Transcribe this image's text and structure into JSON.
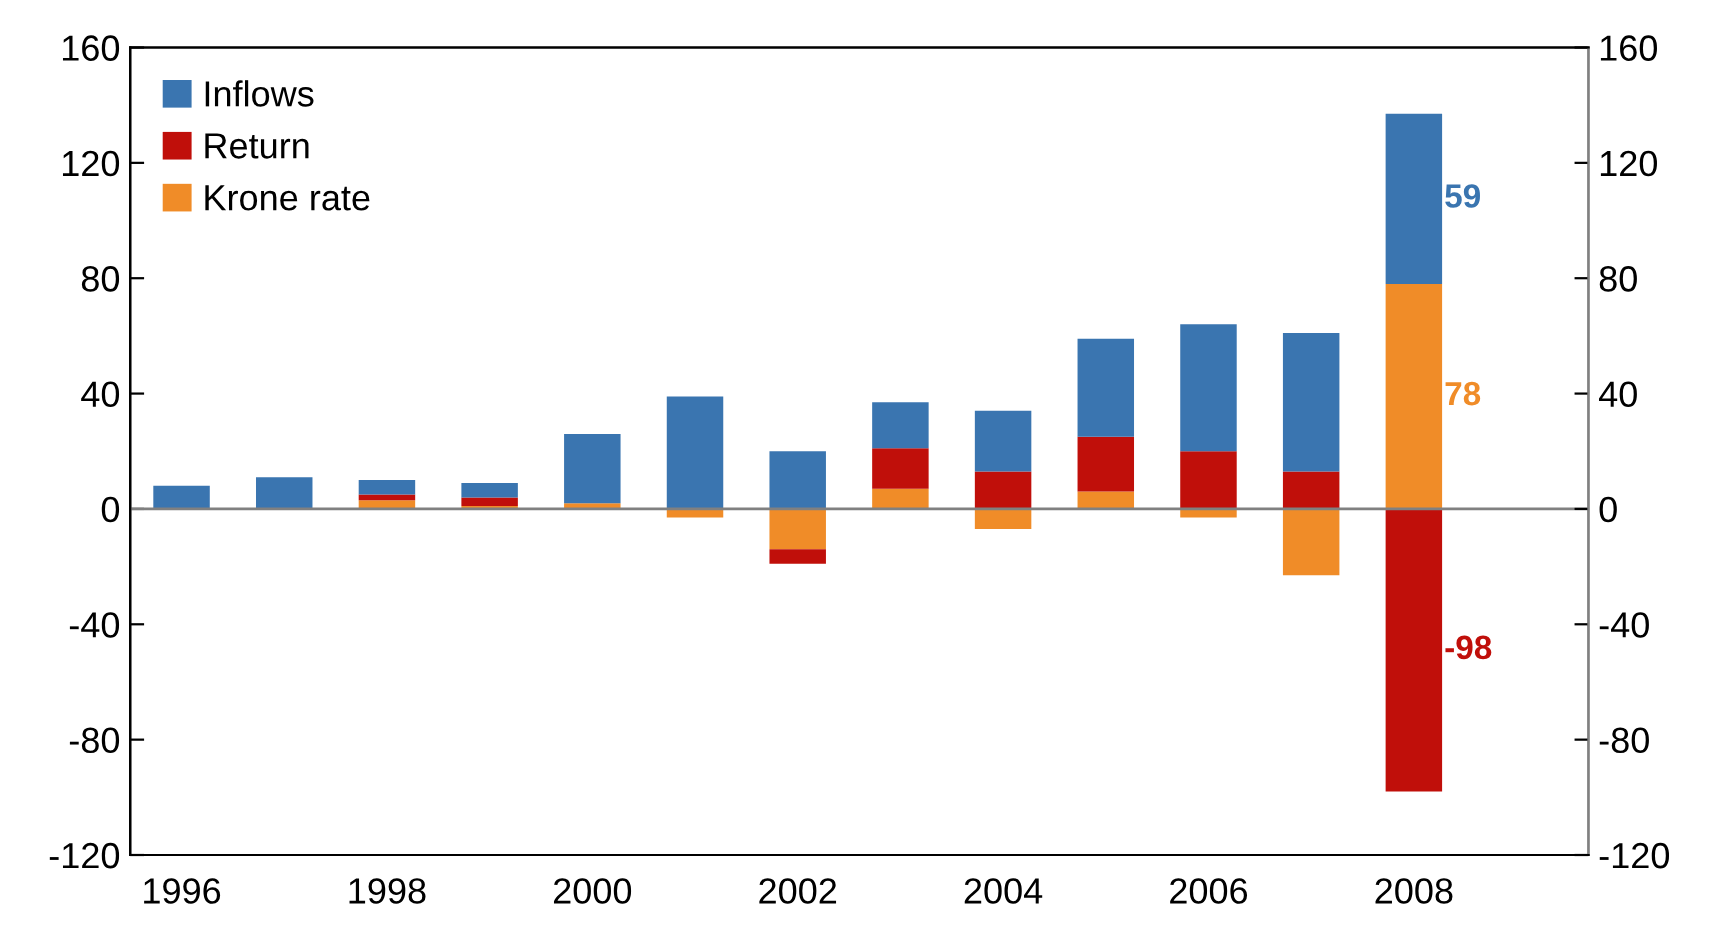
{
  "chart_data": {
    "type": "bar",
    "stacked": true,
    "categories": [
      "1996",
      null,
      "1998",
      null,
      "2000",
      null,
      "2002",
      null,
      "2004",
      null,
      "2006",
      null,
      "2008"
    ],
    "series": [
      {
        "name": "Krone rate",
        "color": "#f08c28",
        "values": [
          0,
          0,
          3,
          1,
          2,
          -3,
          -14,
          7,
          -7,
          6,
          -3,
          -23,
          78
        ],
        "value_labels": [
          null,
          null,
          null,
          null,
          null,
          null,
          null,
          null,
          null,
          null,
          null,
          null,
          "78"
        ]
      },
      {
        "name": "Return",
        "color": "#c00f0a",
        "values": [
          0,
          0,
          2,
          3,
          0,
          0,
          -5,
          14,
          13,
          19,
          20,
          13,
          -98
        ],
        "value_labels": [
          null,
          null,
          null,
          null,
          null,
          null,
          null,
          null,
          null,
          null,
          null,
          null,
          "-98"
        ]
      },
      {
        "name": "Inflows",
        "color": "#3a75b0",
        "values": [
          8,
          11,
          5,
          5,
          24,
          39,
          20,
          16,
          21,
          34,
          44,
          48,
          59
        ],
        "value_labels": [
          null,
          null,
          null,
          null,
          null,
          null,
          null,
          null,
          null,
          null,
          null,
          null,
          "59"
        ]
      }
    ],
    "ylim": [
      -120,
      160
    ],
    "yticks": [
      -120,
      -80,
      -40,
      0,
      40,
      80,
      120,
      160
    ],
    "y2lim": [
      -120,
      160
    ],
    "y2ticks": [
      -120,
      -80,
      -40,
      0,
      40,
      80,
      120,
      160
    ],
    "ref_lines": [
      {
        "axis": "y",
        "value": 0,
        "color": "#808080"
      }
    ],
    "legend": "top left",
    "grid": false
  }
}
